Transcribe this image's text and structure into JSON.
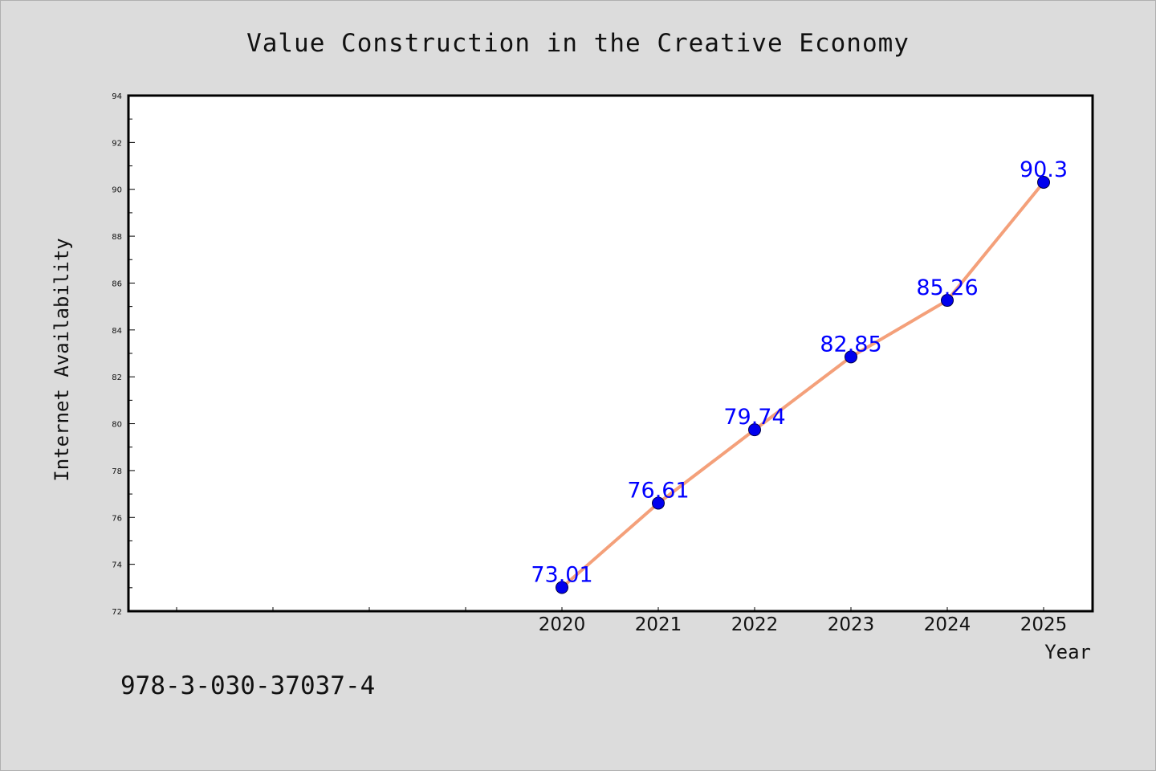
{
  "chart_data": {
    "type": "line",
    "title": "Value Construction in the Creative Economy",
    "xlabel": "Year",
    "ylabel": "Internet Availability",
    "categories": [
      "2020",
      "2021",
      "2022",
      "2023",
      "2024",
      "2025"
    ],
    "values": [
      73.01,
      76.61,
      79.74,
      82.85,
      85.26,
      90.3
    ],
    "data_labels": [
      "73.01",
      "76.61",
      "79.74",
      "82.85",
      "85.26",
      "90.3"
    ],
    "ylim": [
      72,
      94
    ],
    "yticks": [
      "72",
      "74",
      "76",
      "78",
      "80",
      "82",
      "84",
      "86",
      "88",
      "90",
      "92",
      "94"
    ],
    "grid": false,
    "legend": "none",
    "colors": {
      "line": "#f4a07a",
      "marker": "#0000ee",
      "label": "#0000ff",
      "background": "#dcdcdc",
      "plot": "#ffffff"
    }
  },
  "footer": {
    "isbn": "978-3-030-37037-4"
  }
}
